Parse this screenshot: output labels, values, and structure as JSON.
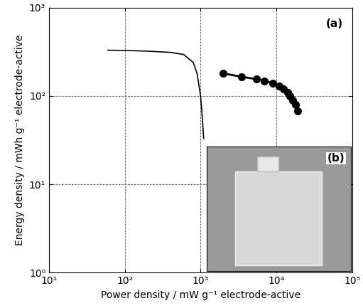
{
  "chart_data": {
    "type": "line",
    "x_label": "Power density / mW g⁻¹ electrode-active",
    "y_label": "Energy density / mWh g⁻¹ electrode-active",
    "log": true,
    "grid": true,
    "xlim": [
      10,
      100000
    ],
    "ylim": [
      1,
      1000
    ],
    "xticks": [
      {
        "value": 10,
        "label": "10¹"
      },
      {
        "value": 100,
        "label": "10²"
      },
      {
        "value": 1000,
        "label": "10³"
      },
      {
        "value": 10000,
        "label": "10⁴"
      },
      {
        "value": 100000,
        "label": "10⁵"
      }
    ],
    "yticks": [
      {
        "value": 1,
        "label": "10⁰"
      },
      {
        "value": 10,
        "label": "10¹"
      },
      {
        "value": 100,
        "label": "10²"
      },
      {
        "value": 1000,
        "label": "10³"
      }
    ],
    "series": [
      {
        "color": "#000000",
        "marker": "none",
        "line_style": "solid",
        "x": [
          60,
          100,
          200,
          400,
          600,
          800,
          900,
          1000,
          1050,
          1100
        ],
        "values": [
          330,
          328,
          322,
          312,
          295,
          240,
          180,
          100,
          60,
          33
        ]
      },
      {
        "color": "#000000",
        "marker": "circle",
        "line_style": "solid",
        "x": [
          2000,
          3500,
          5500,
          7000,
          9000,
          11000,
          12500,
          14000,
          15000,
          16500,
          18000,
          19000
        ],
        "values": [
          180,
          165,
          155,
          148,
          140,
          130,
          120,
          110,
          100,
          90,
          80,
          68
        ]
      }
    ],
    "annotations": [
      "(a)",
      "(b)"
    ]
  }
}
